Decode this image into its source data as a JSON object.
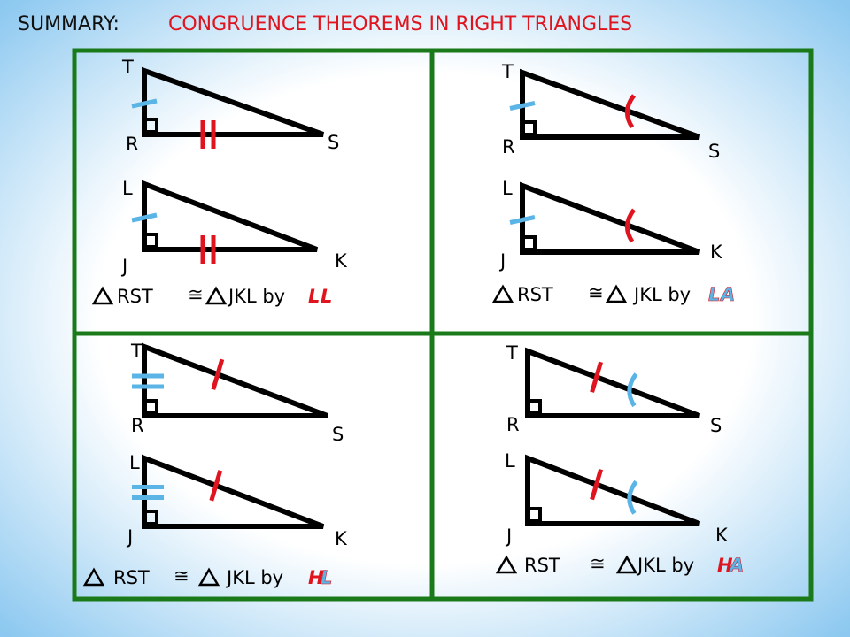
{
  "header": {
    "label": "SUMMARY:",
    "title": "CONGRUENCE THEOREMS IN RIGHT TRIANGLES"
  },
  "panels": [
    {
      "triangles": [
        [
          "T",
          "R",
          "S"
        ],
        [
          "L",
          "J",
          "K"
        ]
      ],
      "statement": {
        "first": "RST",
        "congruent": "≅",
        "second": "JKL by",
        "theorem": [
          "L",
          "L"
        ]
      }
    },
    {
      "triangles": [
        [
          "T",
          "R",
          "S"
        ],
        [
          "L",
          "J",
          "K"
        ]
      ],
      "statement": {
        "first": "RST",
        "congruent": "≅",
        "second": "JKL by",
        "theorem": [
          "L",
          "A"
        ]
      }
    },
    {
      "triangles": [
        [
          "T",
          "R",
          "S"
        ],
        [
          "L",
          "J",
          "K"
        ]
      ],
      "statement": {
        "first": "RST",
        "congruent": "≅",
        "second": "JKL by",
        "theorem": [
          "H",
          "L"
        ]
      }
    },
    {
      "triangles": [
        [
          "T",
          "R",
          "S"
        ],
        [
          "L",
          "J",
          "K"
        ]
      ],
      "statement": {
        "first": "RST",
        "congruent": "≅",
        "second": "JKL by",
        "theorem": [
          "H",
          "A"
        ]
      }
    }
  ]
}
